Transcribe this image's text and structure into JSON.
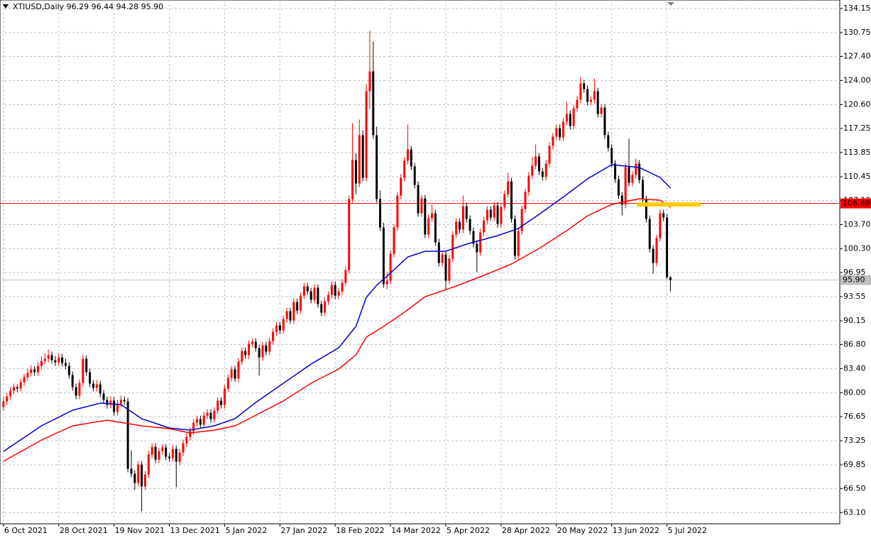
{
  "chart_data": {
    "type": "candlestick",
    "title": "XTIUSD,Daily  96.29 96.44 94.28 95.90",
    "up_color": "#ff0000",
    "down_color": "#000000",
    "grid": true,
    "xlim": [
      -1,
      242
    ],
    "ylim": [
      61.55,
      135.35
    ],
    "xticks": [
      {
        "value": 0,
        "label": "6 Oct 2021"
      },
      {
        "value": 16,
        "label": "28 Oct 2021"
      },
      {
        "value": 32,
        "label": "19 Nov 2021"
      },
      {
        "value": 48,
        "label": "13 Dec 2021"
      },
      {
        "value": 64,
        "label": "5 Jan 2022"
      },
      {
        "value": 80,
        "label": "27 Jan 2022"
      },
      {
        "value": 96,
        "label": "18 Feb 2022"
      },
      {
        "value": 112,
        "label": "14 Mar 2022"
      },
      {
        "value": 128,
        "label": "5 Apr 2022"
      },
      {
        "value": 144,
        "label": "28 Apr 2022"
      },
      {
        "value": 160,
        "label": "20 May 2022"
      },
      {
        "value": 176,
        "label": "13 Jun 2022"
      },
      {
        "value": 192,
        "label": "5 Jul 2022"
      }
    ],
    "yticks": [
      {
        "value": 134.15,
        "label": "134.15"
      },
      {
        "value": 130.75,
        "label": "130.75"
      },
      {
        "value": 127.4,
        "label": "127.40"
      },
      {
        "value": 124,
        "label": "124.00"
      },
      {
        "value": 120.6,
        "label": "120.60"
      },
      {
        "value": 117.25,
        "label": "117.25"
      },
      {
        "value": 113.85,
        "label": "113.85"
      },
      {
        "value": 110.45,
        "label": "110.45"
      },
      {
        "value": 107.1,
        "label": "107.10"
      },
      {
        "value": 103.7,
        "label": "103.70"
      },
      {
        "value": 100.3,
        "label": "100.30"
      },
      {
        "value": 96.95,
        "label": "96.95"
      },
      {
        "value": 93.55,
        "label": "93.55"
      },
      {
        "value": 90.15,
        "label": "90.15"
      },
      {
        "value": 86.8,
        "label": "86.80"
      },
      {
        "value": 83.4,
        "label": "83.40"
      },
      {
        "value": 80,
        "label": "80.00"
      },
      {
        "value": 76.65,
        "label": "76.65"
      },
      {
        "value": 73.25,
        "label": "73.25"
      },
      {
        "value": 69.85,
        "label": "69.85"
      },
      {
        "value": 66.5,
        "label": "66.50"
      },
      {
        "value": 63.1,
        "label": "63.10"
      }
    ],
    "hlines": [
      {
        "value": 106.69,
        "label": "106.69",
        "color": "#ff0000"
      },
      {
        "value": 95.9,
        "label": "95.90",
        "color": "#c0c0c0"
      }
    ],
    "series": [
      {
        "color": "#0000cc",
        "x": [
          0,
          11,
          20,
          28,
          34,
          40,
          48,
          54,
          61,
          67,
          73,
          81,
          89,
          97,
          102,
          105,
          108,
          111,
          117,
          122,
          128,
          134,
          143,
          149,
          155,
          163,
          169,
          176,
          184,
          190,
          193
        ],
        "values": [
          71.75,
          75.35,
          77.55,
          78.55,
          78.35,
          76.35,
          75.05,
          74.75,
          75.35,
          76.35,
          78.65,
          81.35,
          84.05,
          86.35,
          89.35,
          93.45,
          95.15,
          96.45,
          99.15,
          99.95,
          99.95,
          100.95,
          102.15,
          103.15,
          105.15,
          107.95,
          110.15,
          112.15,
          111.75,
          110.35,
          108.85
        ]
      },
      {
        "color": "#ff0000",
        "x": [
          0,
          11,
          20,
          30,
          40,
          48,
          54,
          61,
          67,
          73,
          81,
          89,
          97,
          102,
          105,
          110,
          116,
          122,
          131,
          139,
          147,
          155,
          163,
          169,
          176,
          184,
          190,
          193
        ],
        "values": [
          70.35,
          73.35,
          75.35,
          76.15,
          75.35,
          74.95,
          74.35,
          74.75,
          75.35,
          76.85,
          78.85,
          81.35,
          83.35,
          85.35,
          87.85,
          89.35,
          91.35,
          93.55,
          95.05,
          96.55,
          98.15,
          100.35,
          102.85,
          104.95,
          106.55,
          107.35,
          107.15,
          106.15
        ]
      }
    ],
    "ohlc": [
      [
        78.0,
        79.4,
        77.5,
        78.8
      ],
      [
        78.8,
        80.0,
        78.3,
        79.5
      ],
      [
        79.5,
        80.8,
        79.0,
        80.3
      ],
      [
        80.3,
        81.3,
        79.8,
        80.8
      ],
      [
        80.8,
        81.2,
        80.1,
        80.6
      ],
      [
        80.6,
        82.0,
        80.2,
        81.5
      ],
      [
        81.5,
        82.7,
        81.0,
        82.2
      ],
      [
        82.2,
        83.4,
        81.7,
        82.8
      ],
      [
        82.8,
        83.9,
        82.3,
        83.3
      ],
      [
        83.3,
        83.8,
        82.4,
        82.9
      ],
      [
        82.9,
        84.3,
        82.4,
        83.8
      ],
      [
        83.8,
        85.1,
        83.3,
        84.5
      ],
      [
        84.5,
        85.6,
        84.0,
        84.8
      ],
      [
        84.8,
        86.1,
        84.3,
        85.3
      ],
      [
        85.3,
        85.8,
        84.1,
        84.6
      ],
      [
        84.6,
        85.2,
        83.8,
        84.3
      ],
      [
        84.3,
        85.6,
        83.8,
        85.0
      ],
      [
        85.0,
        85.5,
        83.7,
        84.2
      ],
      [
        84.2,
        84.8,
        83.3,
        83.8
      ],
      [
        83.8,
        84.3,
        82.0,
        82.5
      ],
      [
        82.5,
        83.0,
        80.3,
        80.8
      ],
      [
        80.8,
        81.3,
        79.1,
        79.6
      ],
      [
        79.6,
        81.9,
        79.1,
        81.4
      ],
      [
        81.4,
        85.4,
        80.9,
        84.8
      ],
      [
        84.8,
        85.3,
        82.4,
        82.9
      ],
      [
        82.9,
        83.4,
        80.8,
        81.3
      ],
      [
        81.3,
        81.8,
        80.2,
        80.7
      ],
      [
        80.7,
        81.8,
        80.2,
        81.2
      ],
      [
        81.2,
        81.7,
        79.4,
        79.9
      ],
      [
        79.9,
        80.4,
        78.5,
        79.0
      ],
      [
        79.0,
        79.5,
        77.8,
        78.3
      ],
      [
        78.3,
        79.5,
        77.8,
        78.9
      ],
      [
        78.9,
        79.4,
        76.8,
        77.3
      ],
      [
        77.3,
        79.0,
        76.8,
        78.5
      ],
      [
        78.5,
        79.6,
        78.0,
        79.0
      ],
      [
        79.0,
        79.5,
        78.3,
        78.8
      ],
      [
        78.8,
        79.3,
        68.8,
        69.3
      ],
      [
        69.3,
        71.9,
        68.1,
        68.6
      ],
      [
        68.6,
        69.1,
        66.3,
        67.3
      ],
      [
        67.3,
        70.4,
        66.8,
        69.9
      ],
      [
        69.9,
        70.4,
        63.3,
        66.8
      ],
      [
        66.8,
        69.0,
        66.3,
        68.5
      ],
      [
        68.5,
        71.8,
        68.0,
        71.3
      ],
      [
        71.3,
        72.9,
        70.8,
        72.4
      ],
      [
        72.4,
        72.9,
        70.1,
        70.6
      ],
      [
        70.6,
        72.3,
        70.1,
        71.8
      ],
      [
        71.8,
        72.8,
        71.3,
        72.3
      ],
      [
        72.3,
        72.8,
        70.5,
        71.0
      ],
      [
        71.0,
        71.5,
        70.3,
        70.8
      ],
      [
        70.8,
        72.6,
        70.3,
        72.1
      ],
      [
        72.1,
        72.6,
        66.7,
        70.3
      ],
      [
        70.3,
        72.1,
        69.8,
        71.6
      ],
      [
        71.6,
        73.4,
        71.1,
        72.9
      ],
      [
        72.9,
        74.3,
        72.4,
        73.8
      ],
      [
        73.8,
        75.1,
        73.3,
        74.6
      ],
      [
        74.6,
        76.3,
        74.1,
        75.8
      ],
      [
        75.8,
        76.8,
        75.3,
        76.3
      ],
      [
        76.3,
        76.8,
        75.0,
        75.5
      ],
      [
        75.5,
        77.3,
        75.0,
        76.8
      ],
      [
        76.8,
        77.7,
        76.3,
        77.2
      ],
      [
        77.2,
        77.7,
        75.8,
        76.3
      ],
      [
        76.3,
        78.0,
        75.8,
        77.5
      ],
      [
        77.5,
        79.4,
        77.0,
        78.9
      ],
      [
        78.9,
        79.4,
        77.8,
        78.3
      ],
      [
        78.3,
        81.1,
        77.8,
        80.6
      ],
      [
        80.6,
        82.6,
        80.1,
        82.1
      ],
      [
        82.1,
        83.8,
        81.6,
        83.3
      ],
      [
        83.3,
        83.8,
        81.5,
        82.0
      ],
      [
        82.0,
        84.9,
        81.5,
        84.4
      ],
      [
        84.4,
        86.4,
        83.9,
        85.9
      ],
      [
        85.9,
        86.4,
        84.8,
        85.3
      ],
      [
        85.3,
        87.4,
        84.8,
        86.9
      ],
      [
        86.9,
        87.7,
        86.4,
        87.2
      ],
      [
        87.2,
        87.7,
        85.8,
        86.3
      ],
      [
        86.3,
        86.8,
        82.4,
        85.0
      ],
      [
        85.0,
        87.2,
        84.5,
        86.7
      ],
      [
        86.7,
        87.2,
        85.3,
        85.8
      ],
      [
        85.8,
        87.8,
        85.3,
        87.3
      ],
      [
        87.3,
        89.1,
        86.8,
        88.6
      ],
      [
        88.6,
        90.0,
        88.1,
        89.5
      ],
      [
        89.5,
        90.0,
        88.3,
        88.8
      ],
      [
        88.8,
        90.9,
        88.3,
        90.4
      ],
      [
        90.4,
        92.0,
        89.9,
        91.5
      ],
      [
        91.5,
        92.0,
        89.7,
        90.2
      ],
      [
        90.2,
        93.3,
        89.7,
        92.8
      ],
      [
        92.8,
        93.3,
        91.1,
        91.6
      ],
      [
        91.6,
        94.2,
        91.1,
        93.7
      ],
      [
        93.7,
        95.5,
        93.2,
        95.0
      ],
      [
        95.0,
        95.5,
        93.8,
        94.3
      ],
      [
        94.3,
        94.8,
        92.6,
        93.1
      ],
      [
        93.1,
        95.3,
        92.6,
        94.8
      ],
      [
        94.8,
        95.3,
        92.0,
        92.5
      ],
      [
        92.5,
        93.0,
        90.8,
        91.3
      ],
      [
        91.3,
        93.4,
        90.8,
        92.9
      ],
      [
        92.9,
        94.3,
        92.4,
        93.8
      ],
      [
        93.8,
        95.7,
        93.3,
        95.2
      ],
      [
        95.2,
        95.7,
        93.2,
        93.7
      ],
      [
        93.7,
        94.8,
        93.2,
        94.3
      ],
      [
        94.3,
        96.0,
        93.8,
        95.5
      ],
      [
        95.5,
        97.8,
        95.0,
        97.3
      ],
      [
        97.3,
        107.8,
        96.8,
        107.3
      ],
      [
        107.3,
        118.0,
        106.8,
        112.8
      ],
      [
        112.8,
        113.8,
        108.0,
        109.5
      ],
      [
        109.5,
        118.5,
        109.0,
        116.3
      ],
      [
        116.3,
        117.0,
        109.8,
        110.3
      ],
      [
        110.3,
        123.5,
        109.8,
        122.5
      ],
      [
        122.5,
        131.0,
        120.0,
        125.3
      ],
      [
        125.3,
        129.5,
        115.8,
        116.3
      ],
      [
        116.3,
        117.5,
        106.8,
        107.3
      ],
      [
        107.3,
        108.5,
        102.8,
        103.3
      ],
      [
        103.3,
        104.0,
        94.8,
        95.3
      ],
      [
        95.3,
        97.0,
        94.6,
        95.8
      ],
      [
        95.8,
        100.1,
        95.3,
        99.6
      ],
      [
        99.6,
        103.8,
        99.1,
        103.3
      ],
      [
        103.3,
        108.3,
        102.8,
        107.8
      ],
      [
        107.8,
        110.8,
        107.3,
        110.3
      ],
      [
        110.3,
        113.2,
        109.8,
        112.7
      ],
      [
        112.7,
        117.8,
        112.2,
        114.3
      ],
      [
        114.3,
        114.8,
        111.4,
        111.9
      ],
      [
        111.9,
        112.4,
        108.8,
        109.3
      ],
      [
        109.3,
        109.8,
        104.8,
        105.3
      ],
      [
        105.3,
        107.9,
        104.8,
        107.4
      ],
      [
        107.4,
        107.9,
        101.8,
        102.3
      ],
      [
        102.3,
        105.1,
        101.8,
        104.6
      ],
      [
        104.6,
        106.5,
        104.1,
        105.3
      ],
      [
        105.3,
        105.8,
        100.7,
        101.2
      ],
      [
        101.2,
        101.7,
        97.8,
        98.3
      ],
      [
        98.3,
        100.0,
        97.8,
        99.5
      ],
      [
        99.5,
        100.0,
        94.6,
        95.8
      ],
      [
        95.8,
        99.4,
        95.3,
        98.9
      ],
      [
        98.9,
        102.8,
        98.4,
        102.3
      ],
      [
        102.3,
        104.6,
        101.8,
        104.1
      ],
      [
        104.1,
        104.6,
        102.5,
        103.0
      ],
      [
        103.0,
        107.8,
        102.5,
        106.3
      ],
      [
        106.3,
        106.8,
        104.0,
        104.5
      ],
      [
        104.5,
        105.0,
        102.3,
        102.8
      ],
      [
        102.8,
        103.3,
        100.5,
        101.0
      ],
      [
        101.0,
        101.5,
        97.0,
        99.8
      ],
      [
        99.8,
        103.1,
        99.3,
        102.6
      ],
      [
        102.6,
        104.8,
        102.1,
        104.3
      ],
      [
        104.3,
        106.3,
        103.8,
        105.8
      ],
      [
        105.8,
        106.3,
        104.2,
        104.7
      ],
      [
        104.7,
        106.9,
        104.2,
        106.4
      ],
      [
        106.4,
        106.9,
        103.3,
        103.8
      ],
      [
        103.8,
        106.7,
        103.3,
        106.2
      ],
      [
        106.2,
        108.5,
        105.7,
        108.0
      ],
      [
        108.0,
        111.0,
        107.5,
        109.8
      ],
      [
        109.8,
        110.3,
        104.0,
        104.5
      ],
      [
        104.5,
        105.0,
        98.8,
        99.3
      ],
      [
        99.3,
        103.3,
        98.8,
        102.8
      ],
      [
        102.8,
        106.4,
        102.3,
        105.9
      ],
      [
        105.9,
        108.8,
        105.4,
        108.3
      ],
      [
        108.3,
        111.1,
        107.8,
        110.6
      ],
      [
        110.6,
        113.2,
        110.1,
        112.0
      ],
      [
        112.0,
        115.0,
        111.5,
        113.3
      ],
      [
        113.3,
        113.8,
        110.7,
        111.2
      ],
      [
        111.2,
        111.7,
        109.9,
        110.4
      ],
      [
        110.4,
        112.8,
        109.9,
        112.3
      ],
      [
        112.3,
        115.3,
        111.8,
        114.8
      ],
      [
        114.8,
        116.6,
        114.3,
        116.1
      ],
      [
        116.1,
        117.8,
        115.6,
        117.3
      ],
      [
        117.3,
        117.8,
        115.5,
        116.0
      ],
      [
        116.0,
        118.7,
        115.5,
        118.2
      ],
      [
        118.2,
        121.0,
        117.7,
        119.3
      ],
      [
        119.3,
        119.8,
        117.1,
        117.6
      ],
      [
        117.6,
        120.6,
        117.1,
        120.1
      ],
      [
        120.1,
        121.8,
        119.6,
        121.3
      ],
      [
        121.3,
        124.5,
        120.8,
        123.6
      ],
      [
        123.6,
        124.1,
        122.3,
        122.8
      ],
      [
        122.8,
        123.3,
        120.5,
        121.0
      ],
      [
        121.0,
        121.8,
        120.5,
        121.3
      ],
      [
        121.3,
        124.3,
        120.8,
        122.5
      ],
      [
        122.5,
        123.0,
        118.8,
        119.3
      ],
      [
        119.3,
        120.7,
        118.8,
        120.2
      ],
      [
        120.2,
        120.7,
        115.8,
        116.3
      ],
      [
        116.3,
        116.8,
        114.0,
        114.5
      ],
      [
        114.5,
        115.0,
        111.8,
        112.3
      ],
      [
        112.3,
        112.8,
        109.6,
        110.1
      ],
      [
        110.1,
        110.6,
        107.3,
        107.8
      ],
      [
        107.8,
        108.3,
        105.0,
        106.5
      ],
      [
        106.5,
        112.3,
        106.0,
        111.8
      ],
      [
        111.8,
        115.8,
        109.1,
        109.6
      ],
      [
        109.6,
        111.2,
        109.1,
        110.7
      ],
      [
        110.7,
        113.0,
        110.2,
        112.3
      ],
      [
        112.3,
        112.8,
        109.5,
        110.0
      ],
      [
        110.0,
        110.5,
        106.8,
        107.3
      ],
      [
        107.3,
        107.8,
        104.0,
        104.5
      ],
      [
        104.5,
        105.0,
        99.8,
        100.3
      ],
      [
        100.3,
        100.8,
        96.8,
        98.3
      ],
      [
        98.3,
        102.3,
        97.8,
        101.8
      ],
      [
        101.8,
        105.8,
        101.3,
        105.3
      ],
      [
        105.3,
        105.8,
        104.2,
        104.7
      ],
      [
        104.7,
        105.2,
        96.0,
        96.3
      ],
      [
        96.29,
        96.44,
        94.28,
        95.9
      ]
    ]
  }
}
